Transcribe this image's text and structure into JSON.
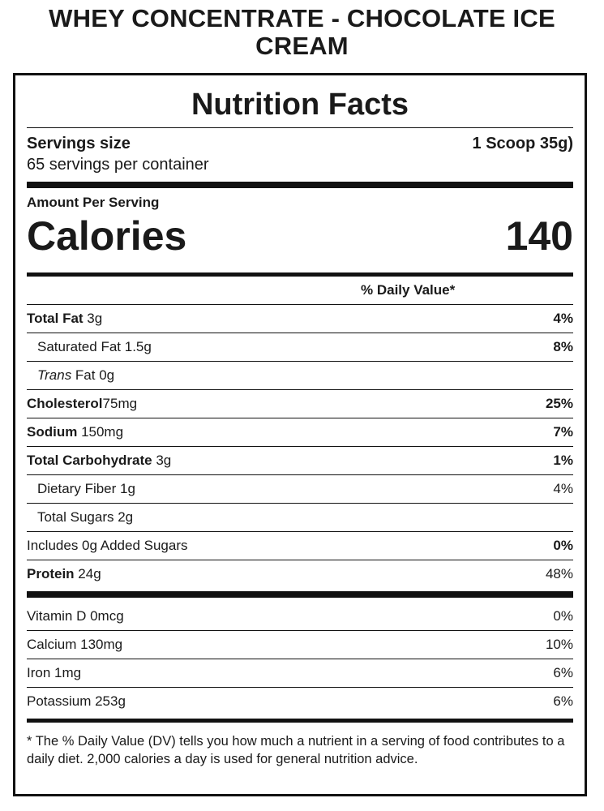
{
  "product_title": "WHEY CONCENTRATE - CHOCOLATE ICE CREAM",
  "label_title": "Nutrition Facts",
  "serving": {
    "size_label": "Servings size",
    "size_value": "1 Scoop 35g)",
    "per_container": "65 servings per container"
  },
  "amount_per_serving": "Amount Per Serving",
  "calories": {
    "label": "Calories",
    "value": "140"
  },
  "dv_header": "% Daily Value*",
  "nutrients": [
    {
      "name": "Total Fat",
      "amount": " 3g",
      "dv": "4%"
    },
    {
      "name": "Saturated Fat",
      "amount": " 1.5g",
      "dv": "8%"
    },
    {
      "name_italic": "Trans",
      "amount": " Fat 0g",
      "dv": ""
    },
    {
      "name": "Cholesterol",
      "amount": "75mg",
      "dv": "25%"
    },
    {
      "name": "Sodium",
      "amount": " 150mg",
      "dv": "7%"
    },
    {
      "name": "Total Carbohydrate",
      "amount": " 3g",
      "dv": "1%"
    },
    {
      "name": "Dietary Fiber",
      "amount": " 1g",
      "dv": "4%"
    },
    {
      "name": "Total Sugars",
      "amount": " 2g",
      "dv": ""
    },
    {
      "name": "Includes 0g Added Sugars",
      "amount": "",
      "dv": "0%"
    },
    {
      "name": "Protein",
      "amount": " 24g",
      "dv": "48%"
    }
  ],
  "vitamins": [
    {
      "name": "Vitamin D 0mcg",
      "dv": "0%"
    },
    {
      "name": "Calcium 130mg",
      "dv": "10%"
    },
    {
      "name": "Iron 1mg",
      "dv": "6%"
    },
    {
      "name": "Potassium 253g",
      "dv": "6%"
    }
  ],
  "footnote": "* The % Daily Value (DV) tells you how much a nutrient in a serving of food contributes to a daily diet. 2,000 calories a day is used for general nutrition advice."
}
